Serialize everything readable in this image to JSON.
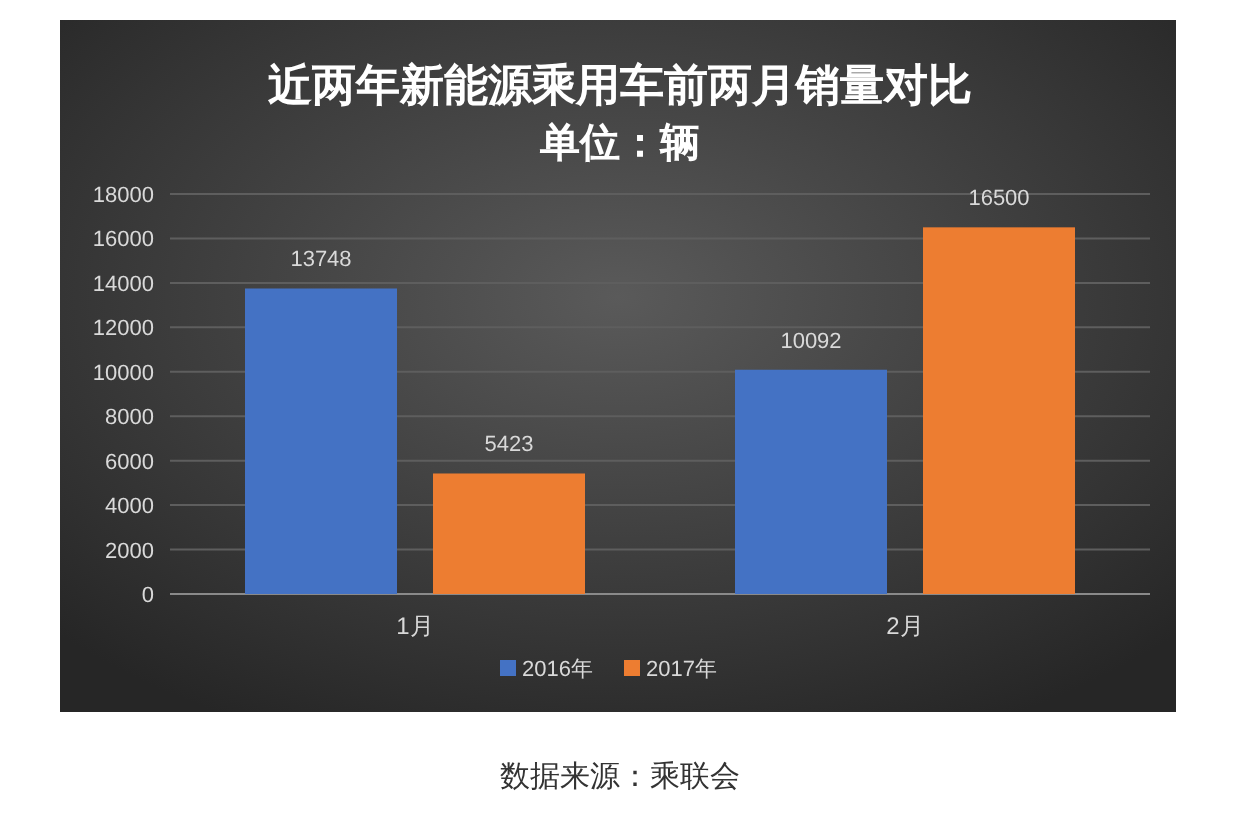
{
  "chart_data": {
    "type": "bar",
    "title": "近两年新能源乘用车前两月销量对比",
    "subtitle": "单位：辆",
    "categories": [
      "1月",
      "2月"
    ],
    "series": [
      {
        "name": "2016年",
        "color": "#4472c4",
        "values": [
          13748,
          10092
        ]
      },
      {
        "name": "2017年",
        "color": "#ed7d31",
        "values": [
          5423,
          16500
        ]
      }
    ],
    "ylim": [
      0,
      18000
    ],
    "yticks": [
      0,
      2000,
      4000,
      6000,
      8000,
      10000,
      12000,
      14000,
      16000,
      18000
    ],
    "grid": "y",
    "legend": "bottom",
    "data_labels": true,
    "annotations": [
      "数据来源：乘联会"
    ]
  }
}
